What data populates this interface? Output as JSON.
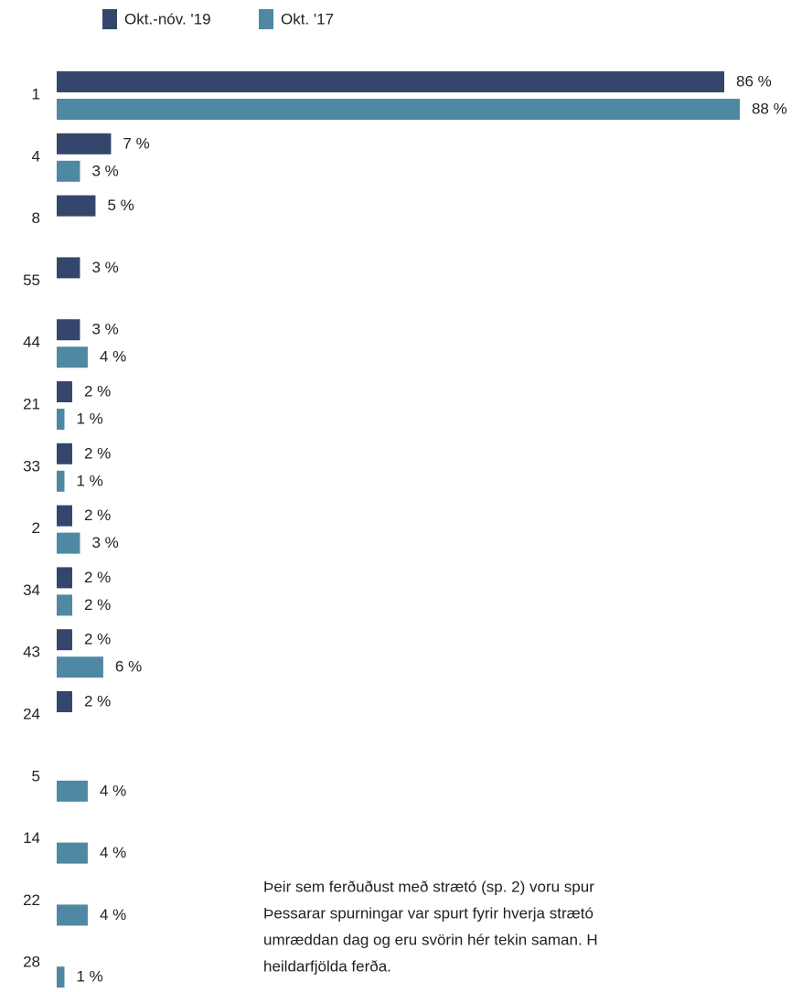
{
  "chart_data": {
    "type": "bar",
    "orientation": "horizontal",
    "categories": [
      "1",
      "4",
      "8",
      "55",
      "44",
      "21",
      "33",
      "2",
      "34",
      "43",
      "24",
      "5",
      "14",
      "22",
      "28"
    ],
    "series": [
      {
        "name": "Okt.-nóv. '19",
        "color": "#34466b",
        "values": [
          86,
          7,
          5,
          3,
          3,
          2,
          2,
          2,
          2,
          2,
          2,
          null,
          null,
          null,
          null
        ],
        "value_labels": [
          "86 %",
          "7 %",
          "5 %",
          "3 %",
          "3 %",
          "2 %",
          "2 %",
          "2 %",
          "2 %",
          "2 %",
          "2 %",
          null,
          null,
          null,
          null
        ]
      },
      {
        "name": "Okt. '17",
        "color": "#4f88a3",
        "values": [
          88,
          3,
          null,
          null,
          4,
          1,
          1,
          3,
          2,
          6,
          null,
          4,
          4,
          4,
          1
        ],
        "value_labels": [
          "88 %",
          "3 %",
          null,
          null,
          "4 %",
          "1 %",
          "1 %",
          "3 %",
          "2 %",
          "6 %",
          null,
          "4 %",
          "4 %",
          "4 %",
          "1 %"
        ]
      }
    ],
    "annotation": [
      "Þeir sem ferðuðust með strætó (sp. 2) voru spur",
      "Þessarar spurningar var spurt fyrir hverja strætó",
      "umræddan dag og eru svörin hér tekin saman. H",
      "heildarfjölda ferða."
    ]
  }
}
